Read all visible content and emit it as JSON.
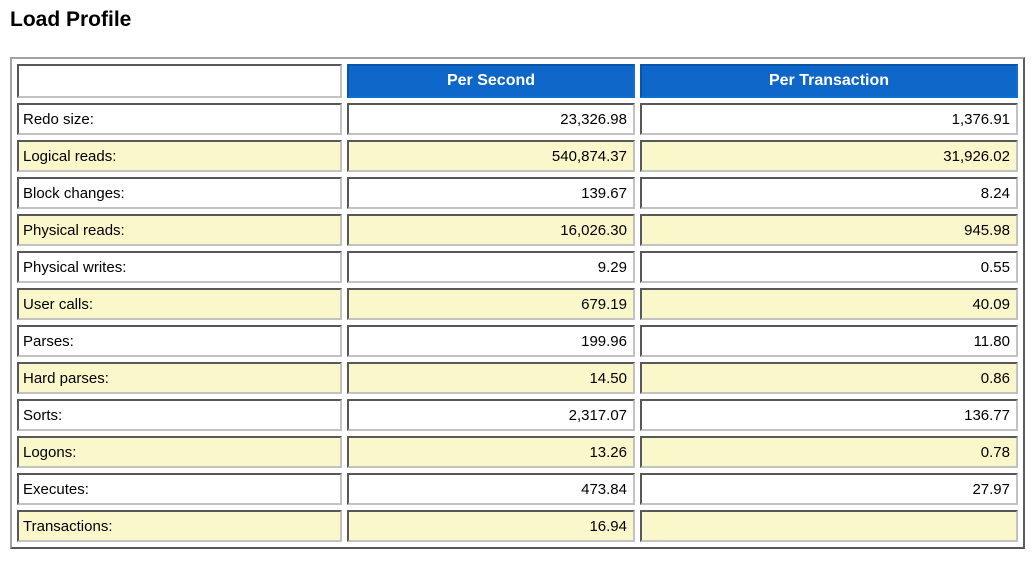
{
  "page": {
    "title": "Load Profile"
  },
  "colors": {
    "header_blue": "#0d66c8",
    "header_text": "#ffffff",
    "row_alt_yellow": "#faf7cb"
  },
  "table": {
    "columns": [
      "",
      "Per Second",
      "Per Transaction"
    ],
    "rows": [
      {
        "label": "Redo size:",
        "per_second": "23,326.98",
        "per_transaction": "1,376.91"
      },
      {
        "label": "Logical reads:",
        "per_second": "540,874.37",
        "per_transaction": "31,926.02"
      },
      {
        "label": "Block changes:",
        "per_second": "139.67",
        "per_transaction": "8.24"
      },
      {
        "label": "Physical reads:",
        "per_second": "16,026.30",
        "per_transaction": "945.98"
      },
      {
        "label": "Physical writes:",
        "per_second": "9.29",
        "per_transaction": "0.55"
      },
      {
        "label": "User calls:",
        "per_second": "679.19",
        "per_transaction": "40.09"
      },
      {
        "label": "Parses:",
        "per_second": "199.96",
        "per_transaction": "11.80"
      },
      {
        "label": "Hard parses:",
        "per_second": "14.50",
        "per_transaction": "0.86"
      },
      {
        "label": "Sorts:",
        "per_second": "2,317.07",
        "per_transaction": "136.77"
      },
      {
        "label": "Logons:",
        "per_second": "13.26",
        "per_transaction": "0.78"
      },
      {
        "label": "Executes:",
        "per_second": "473.84",
        "per_transaction": "27.97"
      },
      {
        "label": "Transactions:",
        "per_second": "16.94",
        "per_transaction": ""
      }
    ]
  }
}
